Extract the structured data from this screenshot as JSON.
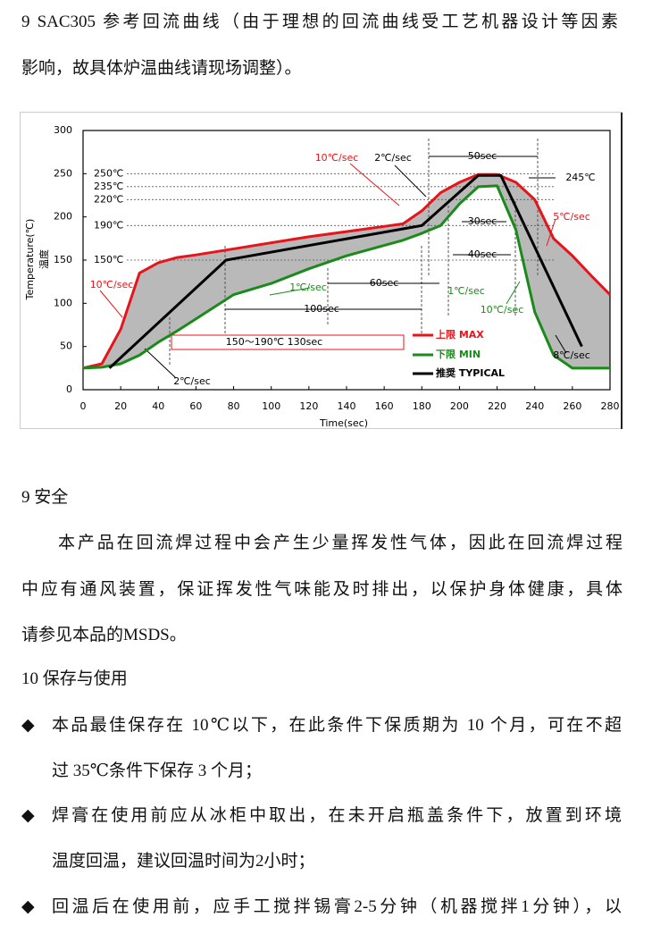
{
  "heading": {
    "lines": [
      "9  SAC305 参考回流曲线（由于理想的回流曲线受工艺机器设计等因素",
      "影响，故具体炉温曲线请现场调整）。"
    ]
  },
  "chart_data": {
    "type": "line",
    "xlabel": "Time(sec)",
    "ylabel": "Temperature(℃)",
    "ylabel2": "温度",
    "xlim": [
      0,
      280
    ],
    "ylim": [
      0,
      300
    ],
    "xticks": [
      0,
      20,
      40,
      60,
      80,
      100,
      120,
      140,
      160,
      180,
      200,
      220,
      240,
      260,
      280
    ],
    "yticks": [
      0,
      50,
      100,
      150,
      200,
      250,
      300
    ],
    "grid": false,
    "band_color": "#b9b9b9",
    "ref_lines": [
      {
        "value": 250,
        "label": "250℃"
      },
      {
        "value": 235,
        "label": "235℃"
      },
      {
        "value": 220,
        "label": "220℃"
      },
      {
        "value": 190,
        "label": "190℃"
      },
      {
        "value": 150,
        "label": "150℃"
      }
    ],
    "series": [
      {
        "name": "上限 MAX",
        "color": "#e8141c",
        "x": [
          0,
          10,
          20,
          30,
          40,
          50,
          60,
          80,
          100,
          120,
          140,
          160,
          170,
          180,
          190,
          200,
          210,
          220,
          230,
          240,
          250,
          260,
          270,
          280
        ],
        "values": [
          25,
          30,
          70,
          135,
          147,
          153,
          156,
          163,
          170,
          177,
          183,
          189,
          192,
          207,
          228,
          240,
          249,
          249,
          240,
          220,
          175,
          155,
          132,
          110
        ]
      },
      {
        "name": "下限 MIN",
        "color": "#1a8a1a",
        "x": [
          0,
          10,
          20,
          30,
          40,
          50,
          60,
          80,
          100,
          120,
          140,
          160,
          170,
          180,
          190,
          200,
          210,
          220,
          230,
          240,
          250,
          260,
          270,
          280
        ],
        "values": [
          25,
          26,
          30,
          40,
          55,
          68,
          82,
          110,
          123,
          140,
          155,
          167,
          173,
          181,
          190,
          215,
          235,
          236,
          185,
          90,
          40,
          25,
          25,
          25
        ]
      },
      {
        "name": "推奨 TYPICAL",
        "color": "#000000",
        "x": [
          14,
          76,
          180,
          210,
          222,
          265
        ],
        "values": [
          25,
          150,
          190,
          248,
          248,
          50
        ]
      }
    ],
    "annotations": [
      {
        "text": "10℃/sec",
        "color": "#e8141c"
      },
      {
        "text": "2℃/sec",
        "color": "#000000"
      },
      {
        "text": "50sec",
        "color": "#000000"
      },
      {
        "text": "245℃",
        "color": "#000000"
      },
      {
        "text": "5℃/sec",
        "color": "#e8141c"
      },
      {
        "text": "30sec",
        "color": "#000000"
      },
      {
        "text": "40sec",
        "color": "#000000"
      },
      {
        "text": "60sec",
        "color": "#000000"
      },
      {
        "text": "1℃/sec",
        "color": "#1a8a1a"
      },
      {
        "text": "1℃/sec",
        "color": "#1a8a1a"
      },
      {
        "text": "10℃/sec",
        "color": "#1a8a1a"
      },
      {
        "text": "100sec",
        "color": "#000000"
      },
      {
        "text": "150～190℃  130sec",
        "color": "#000000"
      },
      {
        "text": "10℃/sec",
        "color": "#e8141c"
      },
      {
        "text": "8℃/sec",
        "color": "#000000"
      },
      {
        "text": "2℃/sec",
        "color": "#000000"
      }
    ]
  },
  "section9": {
    "title": "9 安全",
    "lines": [
      "本产品在回流焊过程中会产生少量挥发性气体，因此在回流焊过程",
      "中应有通风装置，保证挥发性气味能及时排出，以保护身体健康，具体",
      "请参见本品的MSDS。"
    ]
  },
  "section10": {
    "title": "10 保存与使用",
    "bullet": "◆",
    "bullets": [
      [
        "本品最佳保存在 10℃以下，在此条件下保质期为 10 个月，可在不超",
        "过 35℃条件下保存 3 个月；"
      ],
      [
        "焊膏在使用前应从冰柜中取出，在未开启瓶盖条件下，放置到环境",
        "温度回温，建议回温时间为2小时；"
      ],
      [
        "回温后在使用前，应手工搅拌锡膏2-5分钟（机器搅拌1分钟），以"
      ]
    ]
  }
}
